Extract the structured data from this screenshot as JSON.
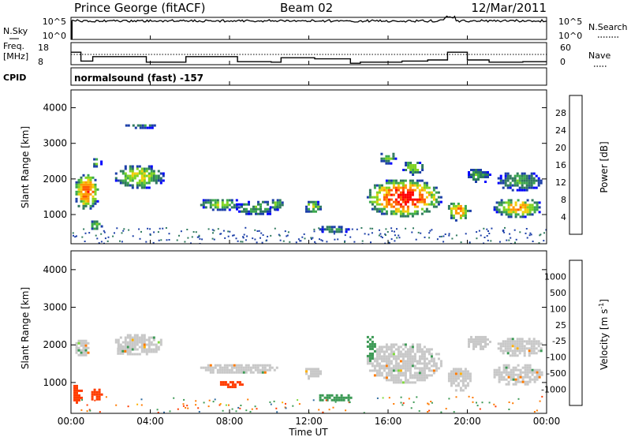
{
  "header": {
    "station": "Prince George (fitACF)",
    "beam": "Beam 02",
    "date": "12/Mar/2011"
  },
  "noise_panel": {
    "left_label": "N.Sky",
    "left_ticks": [
      "10^5",
      "10^0"
    ],
    "right_ticks": [
      "10^5",
      "10^0"
    ],
    "right_label": "N.Search"
  },
  "freq_panel": {
    "left_label_1": "Freq.",
    "left_label_2": "[MHz]",
    "left_ticks": [
      "18",
      "8"
    ],
    "right_ticks": [
      "60",
      "0"
    ],
    "right_label": "Nave"
  },
  "cpid_panel": {
    "label": "CPID",
    "value": "normalsound (fast) -157"
  },
  "x_axis": {
    "ticks": [
      "00:00",
      "04:00",
      "08:00",
      "12:00",
      "16:00",
      "20:00",
      "00:00"
    ],
    "title": "Time UT"
  },
  "power_panel": {
    "ylabel": "Slant Range [km]",
    "yticks": [
      "4000",
      "3000",
      "2000",
      "1000"
    ],
    "colorbar_title": "Power [dB]",
    "colorbar_ticks": [
      "28",
      "24",
      "20",
      "16",
      "12",
      "8",
      "4"
    ],
    "colorbar_colors": [
      "#0000ff",
      "#1c3fa8",
      "#2f7a5e",
      "#3ba84d",
      "#7ed321",
      "#f2cf0a",
      "#ff9a00",
      "#ff5a00",
      "#ff0000"
    ]
  },
  "velocity_panel": {
    "ylabel": "Slant Range [km]",
    "yticks": [
      "4000",
      "3000",
      "2000",
      "1000"
    ],
    "colorbar_title": "Velocity [m s",
    "colorbar_title_sup": "-1",
    "colorbar_title_end": "]",
    "colorbar_ticks": [
      "1000",
      "500",
      "100",
      "25",
      "-25",
      "-100",
      "-500",
      "-1000"
    ],
    "colorbar_colors": [
      "#1a3fd6",
      "#2e6a9e",
      "#3c9a55",
      "#7fd93c",
      "#c8c8c8",
      "#ffb000",
      "#ff7a00",
      "#ff3c00",
      "#ff0000"
    ]
  },
  "chart_data": {
    "type": "heatmap",
    "x_range_hours": [
      0,
      24
    ],
    "y_range_km": [
      180,
      4500
    ],
    "ground_scatter_color": "#c8c8c8",
    "power_blobs": [
      {
        "t0": 0.1,
        "t1": 1.4,
        "r0": 1150,
        "r1": 2200,
        "peak_db": 26
      },
      {
        "t0": 0.9,
        "t1": 1.5,
        "r0": 550,
        "r1": 900,
        "peak_db": 14
      },
      {
        "t0": 2.1,
        "t1": 4.7,
        "r0": 1750,
        "r1": 2450,
        "peak_db": 18
      },
      {
        "t0": 1.0,
        "t1": 1.5,
        "r0": 2350,
        "r1": 2650,
        "peak_db": 12
      },
      {
        "t0": 2.5,
        "t1": 4.4,
        "r0": 3450,
        "r1": 3600,
        "peak_db": 8
      },
      {
        "t0": 6.4,
        "t1": 8.6,
        "r0": 1150,
        "r1": 1500,
        "peak_db": 16
      },
      {
        "t0": 8.2,
        "t1": 10.4,
        "r0": 1000,
        "r1": 1450,
        "peak_db": 12
      },
      {
        "t0": 9.9,
        "t1": 10.7,
        "r0": 1150,
        "r1": 1500,
        "peak_db": 14
      },
      {
        "t0": 11.7,
        "t1": 12.6,
        "r0": 1050,
        "r1": 1450,
        "peak_db": 16
      },
      {
        "t0": 12.4,
        "t1": 14.0,
        "r0": 500,
        "r1": 750,
        "peak_db": 10
      },
      {
        "t0": 14.8,
        "t1": 18.7,
        "r0": 950,
        "r1": 2050,
        "peak_db": 30
      },
      {
        "t0": 15.5,
        "t1": 16.4,
        "r0": 2450,
        "r1": 2800,
        "peak_db": 14
      },
      {
        "t0": 16.6,
        "t1": 17.8,
        "r0": 2150,
        "r1": 2550,
        "peak_db": 16
      },
      {
        "t0": 18.9,
        "t1": 20.1,
        "r0": 850,
        "r1": 1400,
        "peak_db": 24
      },
      {
        "t0": 19.9,
        "t1": 21.1,
        "r0": 1900,
        "r1": 2350,
        "peak_db": 12
      },
      {
        "t0": 21.2,
        "t1": 23.8,
        "r0": 950,
        "r1": 1500,
        "peak_db": 22
      },
      {
        "t0": 21.4,
        "t1": 23.8,
        "r0": 1700,
        "r1": 2250,
        "peak_db": 12
      }
    ],
    "velocity_blobs": [
      {
        "t0": 0.1,
        "t1": 0.9,
        "r0": 1700,
        "r1": 2200,
        "v": 0
      },
      {
        "t0": 0.0,
        "t1": 0.5,
        "r0": 450,
        "r1": 1000,
        "v": -400
      },
      {
        "t0": 0.9,
        "t1": 1.5,
        "r0": 550,
        "r1": 900,
        "v": -500
      },
      {
        "t0": 2.1,
        "t1": 4.6,
        "r0": 1750,
        "r1": 2350,
        "v": 0
      },
      {
        "t0": 2.2,
        "t1": 2.7,
        "r0": 1750,
        "r1": 2050,
        "v": 0
      },
      {
        "t0": 6.4,
        "t1": 10.4,
        "r0": 1250,
        "r1": 1550,
        "v": 0
      },
      {
        "t0": 7.4,
        "t1": 8.7,
        "r0": 900,
        "r1": 1100,
        "v": -300
      },
      {
        "t0": 11.7,
        "t1": 12.6,
        "r0": 1100,
        "r1": 1450,
        "v": 0
      },
      {
        "t0": 12.4,
        "t1": 14.1,
        "r0": 500,
        "r1": 750,
        "v": 300
      },
      {
        "t0": 14.8,
        "t1": 18.7,
        "r0": 1000,
        "r1": 2100,
        "v": 0
      },
      {
        "t0": 14.8,
        "t1": 15.3,
        "r0": 1600,
        "r1": 2300,
        "v": 120
      },
      {
        "t0": 18.9,
        "t1": 20.2,
        "r0": 800,
        "r1": 1450,
        "v": 0
      },
      {
        "t0": 19.9,
        "t1": 21.1,
        "r0": 1900,
        "r1": 2300,
        "v": 0
      },
      {
        "t0": 21.2,
        "t1": 23.8,
        "r0": 950,
        "r1": 1550,
        "v": 0
      },
      {
        "t0": 21.4,
        "t1": 23.8,
        "r0": 1700,
        "r1": 2250,
        "v": 0
      }
    ],
    "freq_steps_mhz": [
      {
        "t0": 0.0,
        "t1": 0.5,
        "f": 16.5
      },
      {
        "t0": 0.5,
        "t1": 1.1,
        "f": 12.5
      },
      {
        "t0": 1.1,
        "t1": 3.8,
        "f": 14.5
      },
      {
        "t0": 3.8,
        "t1": 5.8,
        "f": 12.0
      },
      {
        "t0": 5.8,
        "t1": 8.4,
        "f": 14.5
      },
      {
        "t0": 8.4,
        "t1": 10.1,
        "f": 12.2
      },
      {
        "t0": 10.1,
        "t1": 10.6,
        "f": 12.0
      },
      {
        "t0": 10.6,
        "t1": 12.3,
        "f": 14.0
      },
      {
        "t0": 12.3,
        "t1": 14.1,
        "f": 13.5
      },
      {
        "t0": 14.1,
        "t1": 14.6,
        "f": 11.5
      },
      {
        "t0": 14.6,
        "t1": 16.7,
        "f": 12.0
      },
      {
        "t0": 16.7,
        "t1": 18.0,
        "f": 12.5
      },
      {
        "t0": 18.0,
        "t1": 19.0,
        "f": 13.0
      },
      {
        "t0": 19.0,
        "t1": 20.0,
        "f": 16.5
      },
      {
        "t0": 20.0,
        "t1": 21.1,
        "f": 13.0
      },
      {
        "t0": 21.1,
        "t1": 22.8,
        "f": 12.0
      },
      {
        "t0": 22.8,
        "t1": 24.0,
        "f": 12.2
      }
    ],
    "nave_level": 37,
    "noise_level_log10": 4.2
  }
}
